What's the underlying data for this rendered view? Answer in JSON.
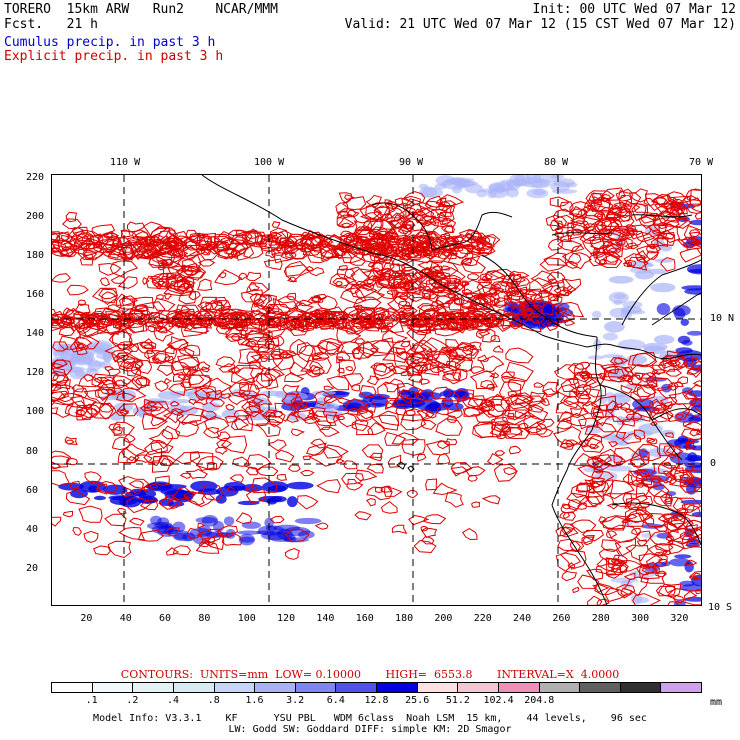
{
  "header": {
    "model": "TORERO  15km ARW   Run2    NCAR/MMM",
    "init": "Init: 00 UTC Wed 07 Mar 12",
    "fcst": "Fcst.   21 h",
    "valid": "Valid: 21 UTC Wed 07 Mar 12 (15 CST Wed 07 Mar 12)",
    "legend_cumulus": "Cumulus precip. in past 3 h",
    "legend_explicit": "Explicit precip. in past 3 h",
    "colors": {
      "cumulus": "#0000cc",
      "explicit": "#cc0000"
    }
  },
  "map": {
    "lon_labels": [
      "110 W",
      "100 W",
      "90 W",
      "80 W",
      "70 W"
    ],
    "lat_labels": [
      "10 N",
      "0",
      "10 S"
    ],
    "y_ticks": [
      "220",
      "200",
      "180",
      "160",
      "140",
      "120",
      "100",
      "80",
      "60",
      "40",
      "20"
    ],
    "x_ticks": [
      "20",
      "40",
      "60",
      "80",
      "100",
      "120",
      "140",
      "160",
      "180",
      "200",
      "220",
      "240",
      "260",
      "280",
      "300",
      "320"
    ],
    "grid_min": 1,
    "x_max": 332,
    "y_max": 222,
    "colors": {
      "land": "#000000",
      "grid": "#000000",
      "contour": "#e00000",
      "precip_light": "#aab4f8",
      "precip_heavy": "#0000e0"
    }
  },
  "contours_caption": "CONTOURS:  UNITS=mm  LOW= 0.10000       HIGH=  6553.8       INTERVAL=X  4.0000",
  "colorbar": {
    "colors": [
      "#ffffff",
      "#f2f8fb",
      "#e4f2f6",
      "#d6ecf1",
      "#c7d6f6",
      "#a8b2f4",
      "#7f86f0",
      "#5050ea",
      "#0000e0",
      "#ffe0e0",
      "#f7c4d4",
      "#f090b8",
      "#b0b0b0",
      "#606060",
      "#303030",
      "#d0a0f0"
    ],
    "labels": [
      ".1",
      ".2",
      ".4",
      ".8",
      "1.6",
      "3.2",
      "6.4",
      "12.8",
      "25.6",
      "51.2",
      "102.4",
      "204.8"
    ],
    "units": "mm"
  },
  "footer": {
    "line1": "Model Info: V3.3.1    KF      YSU PBL   WDM 6class  Noah LSM  15 km,    44 levels,    96 sec",
    "line2": "LW: Godd SW: Goddard DIFF: simple KM: 2D Smagor"
  }
}
